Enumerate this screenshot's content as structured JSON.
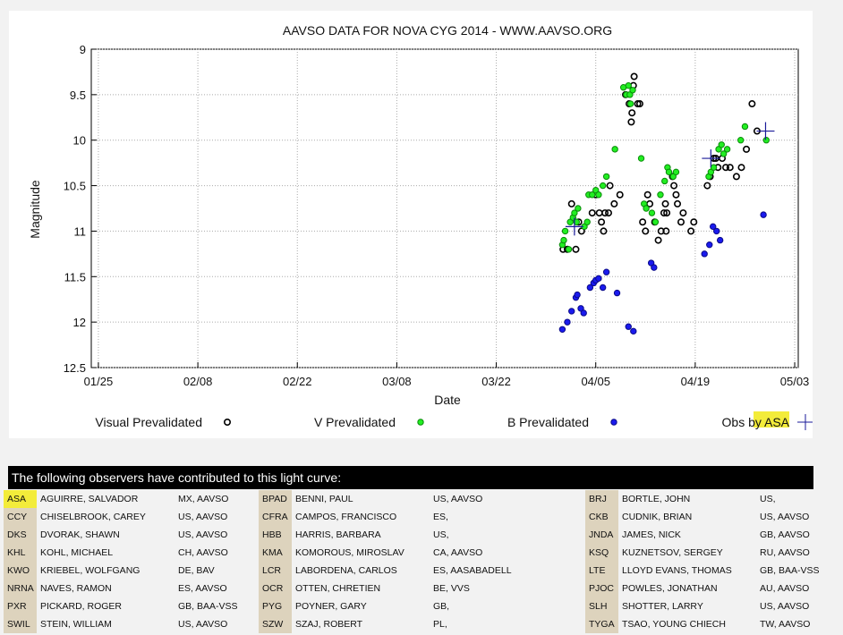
{
  "chart_data": {
    "type": "scatter",
    "title": "AAVSO DATA FOR NOVA CYG 2014 - WWW.AAVSO.ORG",
    "xlabel": "Date",
    "ylabel": "Magnitude",
    "x_ticks": [
      {
        "day": 25,
        "label": "01/25"
      },
      {
        "day": 39,
        "label": "02/08"
      },
      {
        "day": 53,
        "label": "02/22"
      },
      {
        "day": 67,
        "label": "03/08"
      },
      {
        "day": 81,
        "label": "03/22"
      },
      {
        "day": 95,
        "label": "04/05"
      },
      {
        "day": 109,
        "label": "04/19"
      },
      {
        "day": 123,
        "label": "05/03"
      }
    ],
    "y_ticks": [
      "9",
      "9.5",
      "10",
      "10.5",
      "11",
      "11.5",
      "12",
      "12.5"
    ],
    "xlim": [
      24,
      123.5
    ],
    "ylim": [
      12.5,
      9
    ],
    "y_inverted": true,
    "legend_position": "bottom",
    "grid": true,
    "series": [
      {
        "name": "Visual Prevalidated",
        "color": "#000000",
        "points": [
          [
            90.4,
            11.2
          ],
          [
            91.0,
            11.2
          ],
          [
            91.6,
            10.7
          ],
          [
            92.2,
            11.2
          ],
          [
            92.6,
            10.9
          ],
          [
            93.0,
            11.0
          ],
          [
            94.5,
            10.8
          ],
          [
            95.0,
            10.6
          ],
          [
            95.5,
            10.8
          ],
          [
            95.8,
            10.9
          ],
          [
            96.1,
            11.0
          ],
          [
            96.3,
            10.8
          ],
          [
            96.8,
            10.8
          ],
          [
            97.0,
            10.5
          ],
          [
            97.6,
            10.7
          ],
          [
            98.4,
            10.6
          ],
          [
            99.2,
            9.5
          ],
          [
            99.7,
            9.6
          ],
          [
            100.1,
            9.7
          ],
          [
            100.3,
            9.4
          ],
          [
            100.4,
            9.3
          ],
          [
            100.9,
            9.6
          ],
          [
            101.2,
            9.6
          ],
          [
            100.0,
            9.8
          ],
          [
            101.6,
            10.9
          ],
          [
            102.0,
            11.0
          ],
          [
            102.3,
            10.6
          ],
          [
            102.6,
            10.7
          ],
          [
            103.3,
            10.9
          ],
          [
            103.8,
            11.1
          ],
          [
            104.2,
            11.0
          ],
          [
            104.6,
            10.8
          ],
          [
            104.8,
            10.7
          ],
          [
            104.9,
            11.0
          ],
          [
            105.0,
            10.8
          ],
          [
            105.8,
            10.4
          ],
          [
            106.0,
            10.5
          ],
          [
            106.3,
            10.6
          ],
          [
            106.5,
            10.7
          ],
          [
            107.0,
            10.9
          ],
          [
            107.3,
            10.8
          ],
          [
            108.4,
            11.0
          ],
          [
            108.8,
            10.9
          ],
          [
            110.7,
            10.5
          ],
          [
            111.1,
            10.4
          ],
          [
            111.6,
            10.2
          ],
          [
            111.9,
            10.2
          ],
          [
            112.2,
            10.3
          ],
          [
            112.8,
            10.2
          ],
          [
            113.3,
            10.3
          ],
          [
            113.9,
            10.3
          ],
          [
            114.8,
            10.4
          ],
          [
            115.5,
            10.3
          ],
          [
            116.2,
            10.1
          ],
          [
            117.0,
            9.6
          ],
          [
            117.7,
            9.9
          ]
        ]
      },
      {
        "name": "V Prevalidated",
        "color": "#22ee22",
        "points": [
          [
            90.3,
            11.15
          ],
          [
            90.5,
            11.1
          ],
          [
            90.7,
            11.0
          ],
          [
            91.2,
            11.2
          ],
          [
            91.4,
            10.9
          ],
          [
            91.8,
            10.85
          ],
          [
            92.0,
            10.8
          ],
          [
            92.3,
            10.9
          ],
          [
            92.5,
            10.75
          ],
          [
            93.4,
            10.95
          ],
          [
            93.8,
            10.9
          ],
          [
            94.0,
            10.6
          ],
          [
            94.5,
            10.6
          ],
          [
            95.0,
            10.55
          ],
          [
            95.4,
            10.6
          ],
          [
            96.0,
            10.5
          ],
          [
            96.5,
            10.4
          ],
          [
            97.7,
            10.1
          ],
          [
            98.9,
            9.42
          ],
          [
            99.3,
            9.5
          ],
          [
            99.6,
            9.4
          ],
          [
            99.8,
            9.5
          ],
          [
            99.9,
            9.6
          ],
          [
            100.2,
            9.45
          ],
          [
            101.4,
            10.2
          ],
          [
            101.8,
            10.7
          ],
          [
            102.1,
            10.75
          ],
          [
            102.9,
            10.8
          ],
          [
            103.4,
            10.9
          ],
          [
            104.1,
            10.6
          ],
          [
            104.7,
            10.45
          ],
          [
            105.1,
            10.3
          ],
          [
            105.3,
            10.35
          ],
          [
            105.9,
            10.4
          ],
          [
            106.3,
            10.35
          ],
          [
            110.9,
            10.4
          ],
          [
            111.2,
            10.35
          ],
          [
            111.6,
            10.3
          ],
          [
            112.3,
            10.1
          ],
          [
            112.7,
            10.05
          ],
          [
            113.0,
            10.15
          ],
          [
            113.5,
            10.1
          ],
          [
            115.4,
            10.0
          ],
          [
            116.0,
            9.85
          ],
          [
            119.0,
            10.0
          ]
        ]
      },
      {
        "name": "B Prevalidated",
        "color": "#1a1aee",
        "points": [
          [
            90.3,
            12.08
          ],
          [
            91.0,
            12.0
          ],
          [
            91.6,
            11.88
          ],
          [
            92.2,
            11.73
          ],
          [
            92.4,
            11.7
          ],
          [
            92.9,
            11.85
          ],
          [
            93.3,
            11.9
          ],
          [
            94.2,
            11.62
          ],
          [
            94.7,
            11.57
          ],
          [
            95.0,
            11.54
          ],
          [
            95.4,
            11.52
          ],
          [
            96.0,
            11.62
          ],
          [
            96.5,
            11.45
          ],
          [
            98.0,
            11.68
          ],
          [
            99.6,
            12.05
          ],
          [
            100.3,
            12.1
          ],
          [
            102.8,
            11.35
          ],
          [
            103.2,
            11.4
          ],
          [
            110.3,
            11.25
          ],
          [
            111.0,
            11.15
          ],
          [
            111.5,
            10.95
          ],
          [
            112.0,
            11.0
          ],
          [
            112.5,
            11.1
          ],
          [
            118.6,
            10.82
          ]
        ]
      },
      {
        "name": "Obs by ASA",
        "color": "#1a1a99",
        "points": [
          [
            92.0,
            10.95
          ],
          [
            111.2,
            10.2
          ],
          [
            118.9,
            9.9
          ]
        ]
      }
    ]
  },
  "legend": {
    "visual": "Visual Prevalidated",
    "v": "V Prevalidated",
    "b": "B Prevalidated",
    "obs_prefix": "Obs by ",
    "obs_code": "ASA"
  },
  "observers_header": "The following observers have contributed to this light curve:",
  "observers": [
    [
      [
        "ASA",
        "AGUIRRE, SALVADOR",
        "MX, AAVSO"
      ],
      [
        "BPAD",
        "BENNI, PAUL",
        "US, AAVSO"
      ],
      [
        "BRJ",
        "BORTLE, JOHN",
        "US,"
      ]
    ],
    [
      [
        "CCY",
        "CHISELBROOK, CAREY",
        "US, AAVSO"
      ],
      [
        "CFRA",
        "CAMPOS, FRANCISCO",
        "ES,"
      ],
      [
        "CKB",
        "CUDNIK, BRIAN",
        "US, AAVSO"
      ]
    ],
    [
      [
        "DKS",
        "DVORAK, SHAWN",
        "US, AAVSO"
      ],
      [
        "HBB",
        "HARRIS, BARBARA",
        "US,"
      ],
      [
        "JNDA",
        "JAMES, NICK",
        "GB, AAVSO"
      ]
    ],
    [
      [
        "KHL",
        "KOHL, MICHAEL",
        "CH, AAVSO"
      ],
      [
        "KMA",
        "KOMOROUS, MIROSLAV",
        "CA, AAVSO"
      ],
      [
        "KSQ",
        "KUZNETSOV, SERGEY",
        "RU, AAVSO"
      ]
    ],
    [
      [
        "KWO",
        "KRIEBEL, WOLFGANG",
        "DE, BAV"
      ],
      [
        "LCR",
        "LABORDENA, CARLOS",
        "ES, AASABADELL"
      ],
      [
        "LTE",
        "LLOYD EVANS, THOMAS",
        "GB, BAA-VSS"
      ]
    ],
    [
      [
        "NRNA",
        "NAVES, RAMON",
        "ES, AAVSO"
      ],
      [
        "OCR",
        "OTTEN, CHRETIEN",
        "BE, VVS"
      ],
      [
        "PJOC",
        "POWLES, JONATHAN",
        "AU, AAVSO"
      ]
    ],
    [
      [
        "PXR",
        "PICKARD, ROGER",
        "GB, BAA-VSS"
      ],
      [
        "PYG",
        "POYNER, GARY",
        "GB,"
      ],
      [
        "SLH",
        "SHOTTER, LARRY",
        "US, AAVSO"
      ]
    ],
    [
      [
        "SWIL",
        "STEIN, WILLIAM",
        "US, AAVSO"
      ],
      [
        "SZW",
        "SZAJ, ROBERT",
        "PL,"
      ],
      [
        "TYGA",
        "TSAO, YOUNG CHIECH",
        "TW, AAVSO"
      ]
    ]
  ],
  "highlight_color": "#f3ec3a"
}
